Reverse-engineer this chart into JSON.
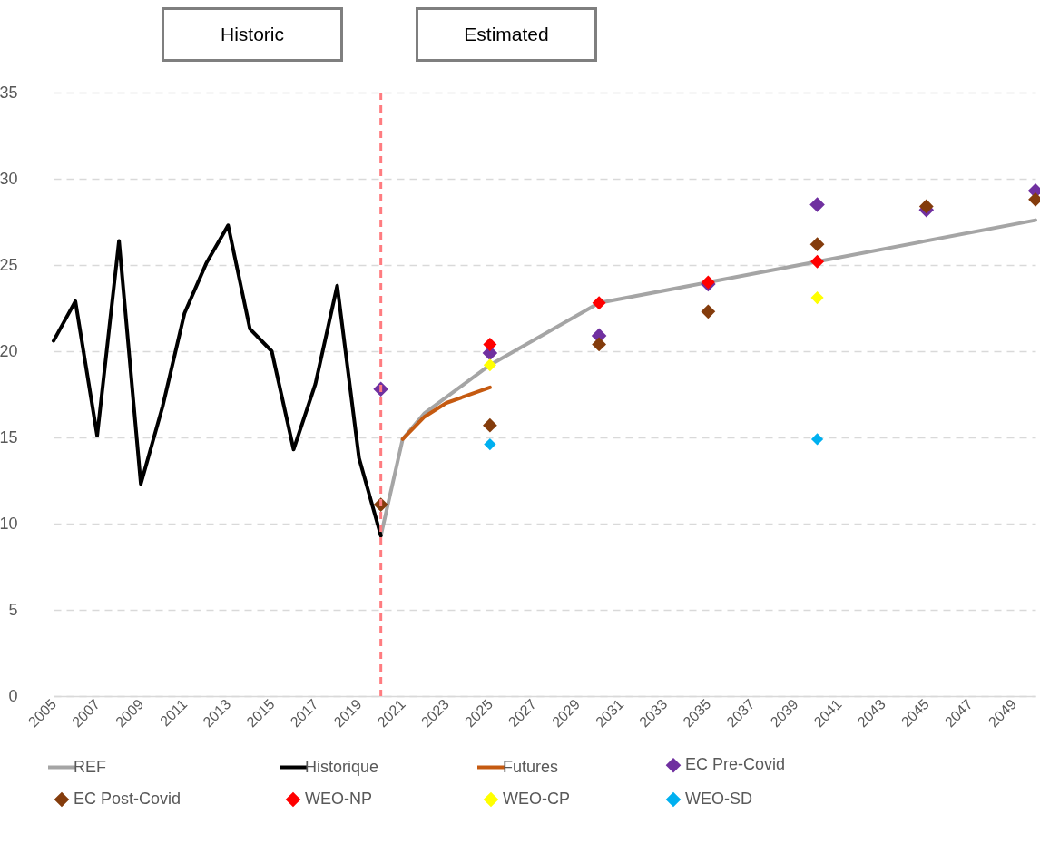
{
  "chart_data": {
    "type": "line",
    "annotations": [
      "Historic",
      "Estimated"
    ],
    "xlim": [
      2005,
      2050
    ],
    "xticks": [
      2005,
      2007,
      2009,
      2011,
      2013,
      2015,
      2017,
      2019,
      2021,
      2023,
      2025,
      2027,
      2029,
      2031,
      2033,
      2035,
      2037,
      2039,
      2041,
      2043,
      2045,
      2047,
      2049
    ],
    "ylim": [
      0,
      35
    ],
    "yticks": [
      0,
      5,
      10,
      15,
      20,
      25,
      30,
      35
    ],
    "grid": "y",
    "legend": "bottom",
    "ref_lines": [
      {
        "axis": "x",
        "value": 2020,
        "color": "#ff7c80",
        "line_style": "dashed"
      }
    ],
    "series": [
      {
        "name": "REF",
        "color": "#a5a5a5",
        "x": [
          2020,
          2021,
          2022,
          2025,
          2030,
          2035,
          2040,
          2050
        ],
        "values": [
          9.3,
          14.9,
          16.4,
          19.2,
          22.8,
          24.0,
          25.2,
          27.6
        ]
      },
      {
        "name": "Historique",
        "color": "#000000",
        "x": [
          2005,
          2006,
          2007,
          2008,
          2009,
          2010,
          2011,
          2012,
          2013,
          2014,
          2015,
          2016,
          2017,
          2018,
          2019,
          2020
        ],
        "values": [
          20.6,
          22.9,
          15.1,
          26.4,
          12.3,
          16.8,
          22.2,
          25.1,
          27.3,
          21.3,
          20.0,
          14.3,
          18.1,
          23.8,
          13.8,
          9.3
        ]
      },
      {
        "name": "Futures",
        "color": "#c55a11",
        "x": [
          2021,
          2022,
          2023,
          2025
        ],
        "values": [
          14.9,
          16.2,
          17.0,
          17.9
        ]
      },
      {
        "name": "EC Pre-Covid",
        "type": "scatter",
        "marker": "diamond",
        "color": "#7030a0",
        "x": [
          2020,
          2025,
          2030,
          2035,
          2040,
          2045,
          2050
        ],
        "values": [
          17.8,
          19.9,
          20.9,
          23.9,
          28.5,
          28.2,
          29.3
        ]
      },
      {
        "name": "EC Post-Covid",
        "type": "scatter",
        "marker": "diamond",
        "color": "#843c0c",
        "x": [
          2020,
          2025,
          2030,
          2035,
          2040,
          2045,
          2050
        ],
        "values": [
          11.1,
          15.7,
          20.4,
          22.3,
          26.2,
          28.4,
          28.8
        ]
      },
      {
        "name": "WEO-NP",
        "type": "scatter",
        "marker": "diamond",
        "color": "#ff0000",
        "x": [
          2025,
          2030,
          2035,
          2040
        ],
        "values": [
          20.4,
          22.8,
          24.0,
          25.2
        ]
      },
      {
        "name": "WEO-CP",
        "type": "scatter",
        "marker": "diamond",
        "color": "#ffff00",
        "x": [
          2025,
          2040
        ],
        "values": [
          19.2,
          23.1
        ]
      },
      {
        "name": "WEO-SD",
        "type": "scatter",
        "marker": "diamond",
        "color": "#00b0f0",
        "x": [
          2025,
          2040
        ],
        "values": [
          14.6,
          14.9
        ]
      }
    ]
  }
}
